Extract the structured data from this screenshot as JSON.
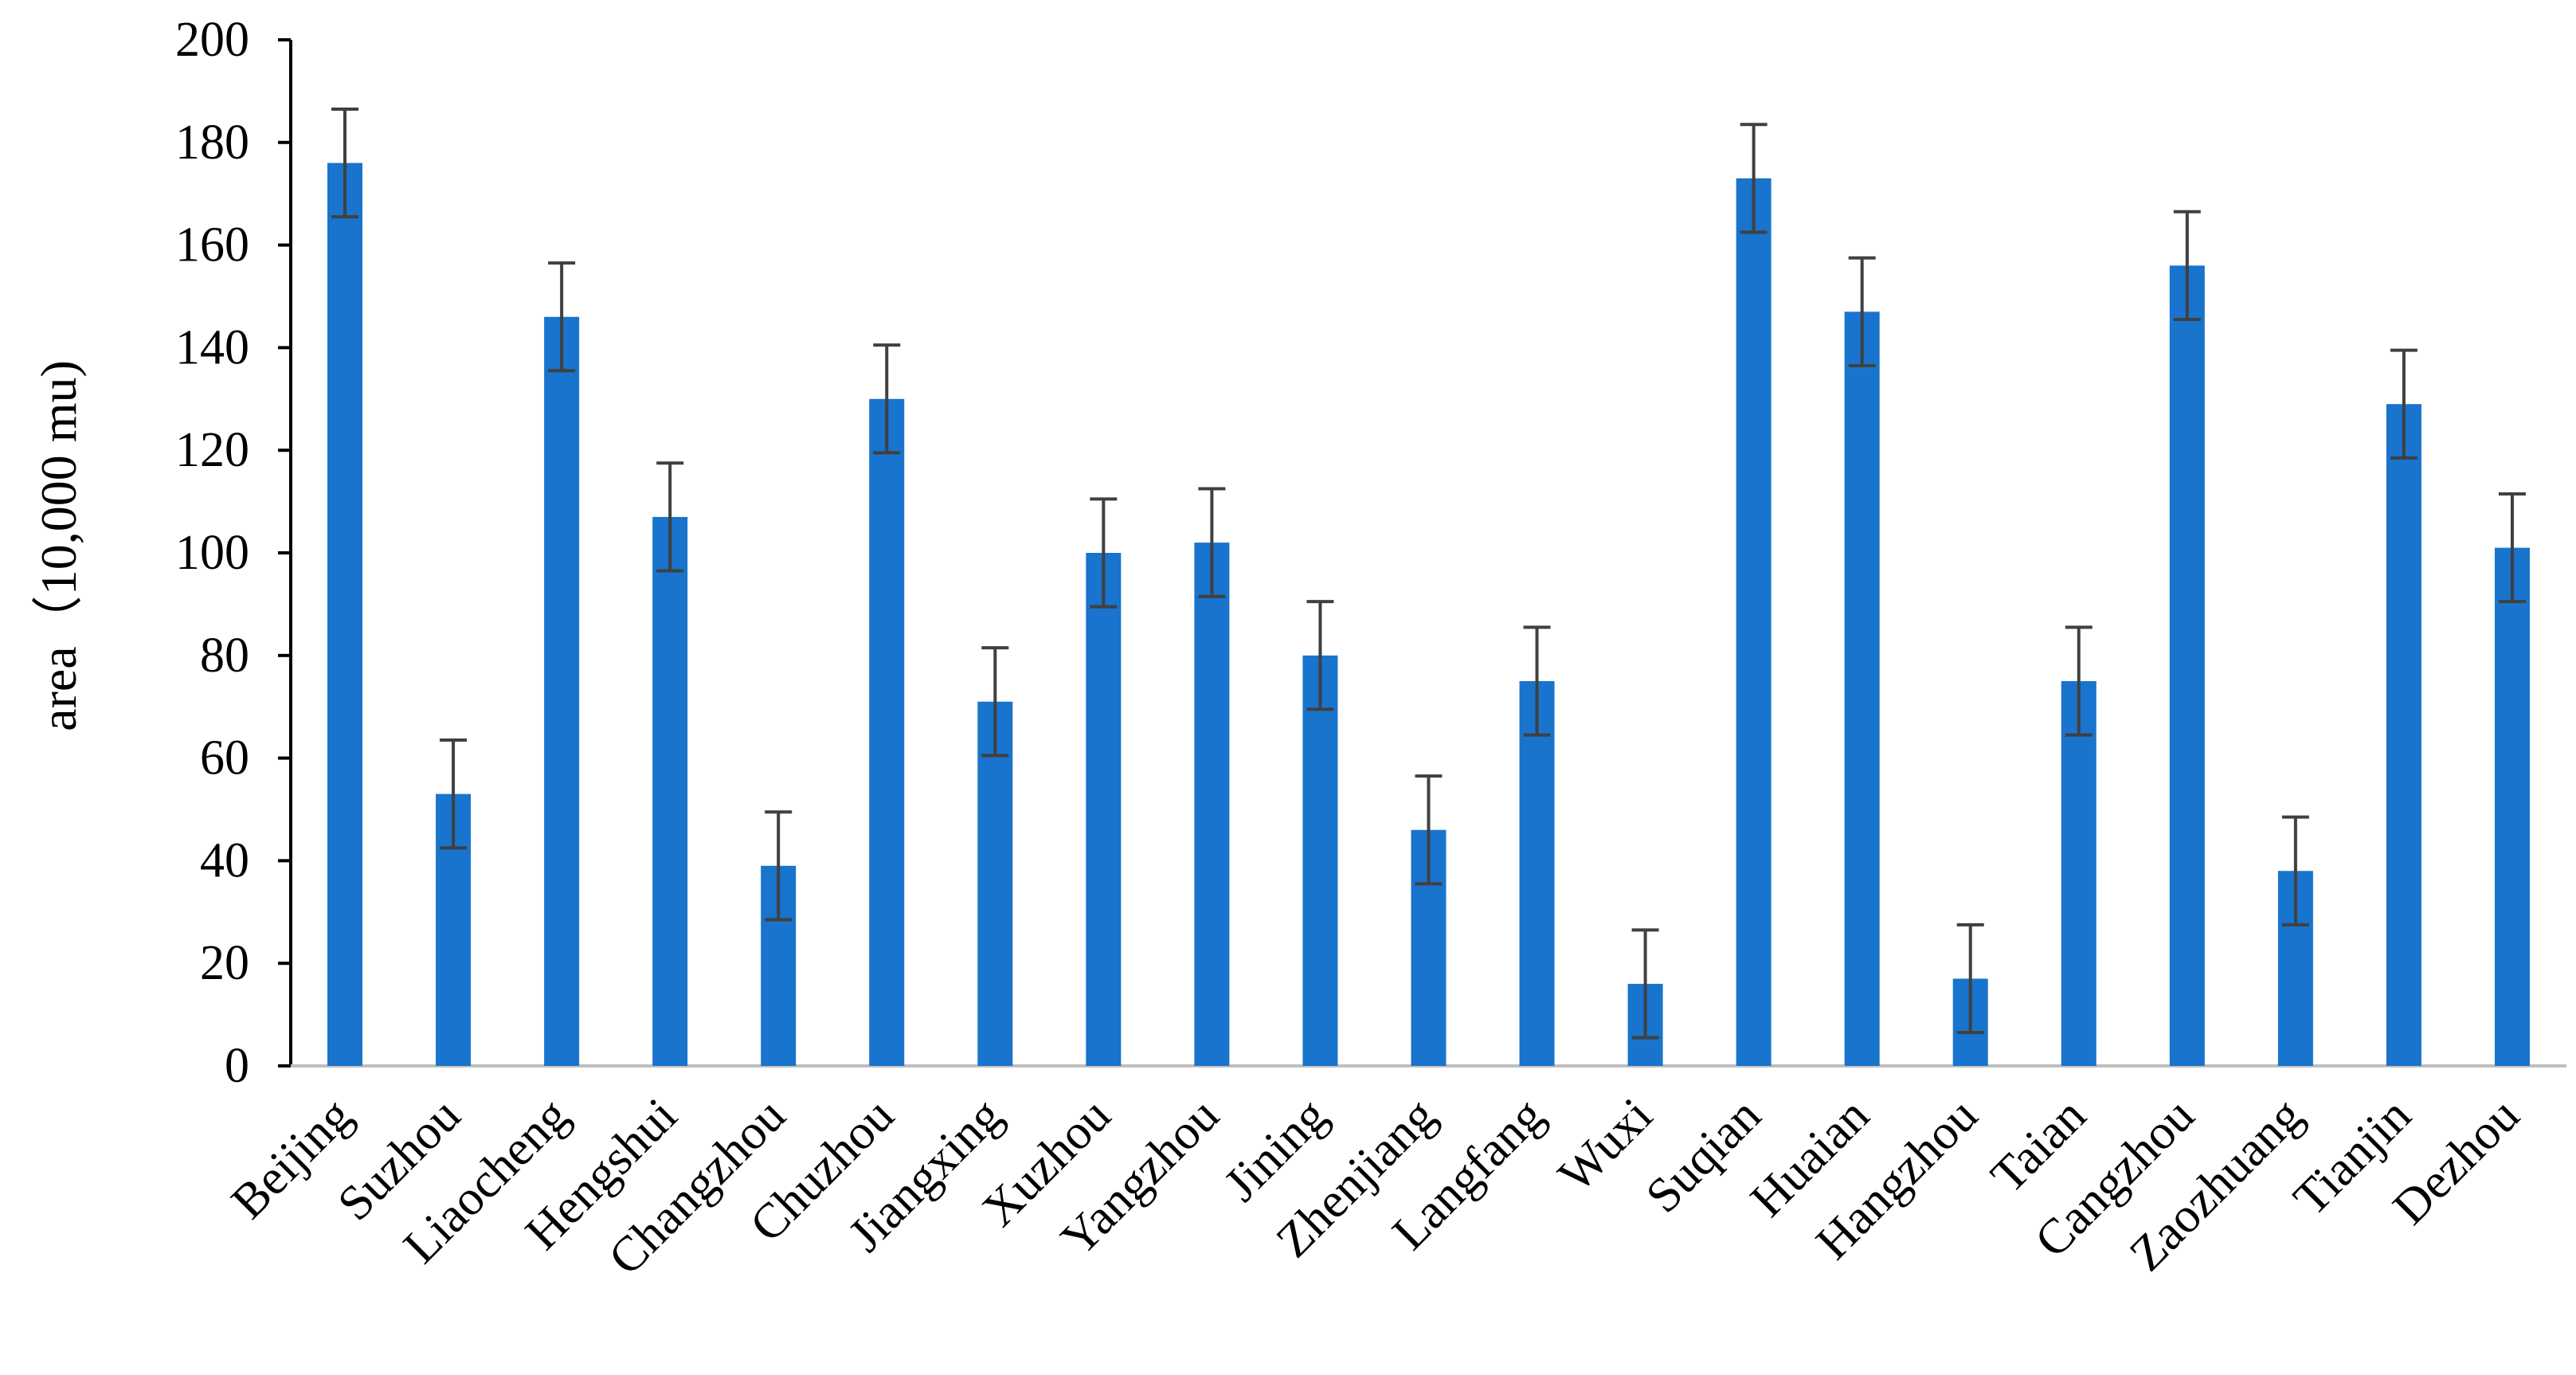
{
  "chart_data": {
    "type": "bar",
    "title": "",
    "xlabel": "",
    "ylabel": "area（10,000 mu)",
    "ylim": [
      0,
      200
    ],
    "yticks": [
      "0",
      "20",
      "40",
      "60",
      "80",
      "100",
      "120",
      "140",
      "160",
      "180",
      "200"
    ],
    "grid": false,
    "legend": "none",
    "bar_color": "#1874CD",
    "error_bar_color": "#404040",
    "categories": [
      "Beijing",
      "Suzhou",
      "Liaocheng",
      "Hengshui",
      "Changzhou",
      "Chuzhou",
      "Jiangxing",
      "Xuzhou",
      "Yangzhou",
      "Jining",
      "Zhenjiang",
      "Langfang",
      "Wuxi",
      "Suqian",
      "Huaian",
      "Hangzhou",
      "Taian",
      "Cangzhou",
      "Zaozhuang",
      "Tianjin",
      "Dezhou"
    ],
    "values": [
      176,
      53,
      146,
      107,
      39,
      130,
      71,
      100,
      102,
      80,
      46,
      75,
      16,
      173,
      147,
      17,
      75,
      156,
      38,
      129,
      101
    ],
    "error": [
      10.5,
      10.5,
      10.5,
      10.5,
      10.5,
      10.5,
      10.5,
      10.5,
      10.5,
      10.5,
      10.5,
      10.5,
      10.5,
      10.5,
      10.5,
      10.5,
      10.5,
      10.5,
      10.5,
      10.5,
      10.5
    ]
  }
}
